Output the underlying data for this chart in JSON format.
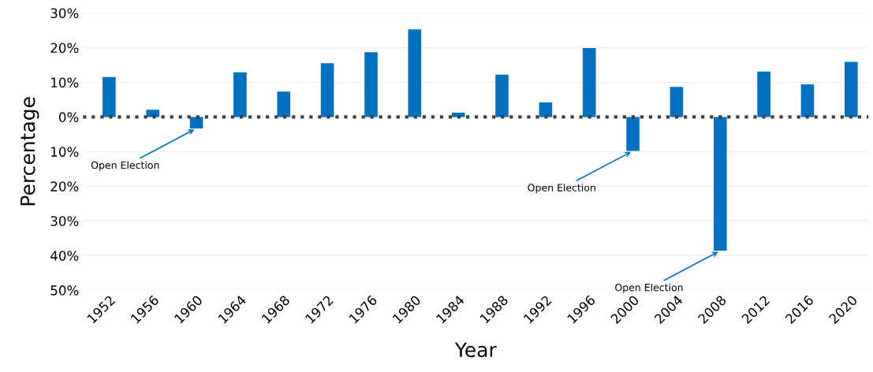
{
  "chart_data": {
    "type": "bar",
    "xlabel": "Year",
    "ylabel": "Percentage",
    "categories": [
      "1952",
      "1956",
      "1960",
      "1964",
      "1968",
      "1972",
      "1976",
      "1980",
      "1984",
      "1988",
      "1992",
      "1996",
      "2000",
      "2004",
      "2008",
      "2012",
      "2016",
      "2020"
    ],
    "values": [
      11.5,
      2.1,
      -3.3,
      12.9,
      7.3,
      15.5,
      18.7,
      25.3,
      1.2,
      12.2,
      4.2,
      19.9,
      -9.8,
      8.7,
      -38.6,
      13.1,
      9.4,
      15.9
    ],
    "color": "#0070c0",
    "ylim": [
      -50,
      30
    ],
    "yticks": [
      {
        "value": -50,
        "label": "50%"
      },
      {
        "value": -40,
        "label": "40%"
      },
      {
        "value": -30,
        "label": "30%"
      },
      {
        "value": -20,
        "label": "20%"
      },
      {
        "value": -10,
        "label": "10%"
      },
      {
        "value": 0,
        "label": "0%"
      },
      {
        "value": 10,
        "label": "10%"
      },
      {
        "value": 20,
        "label": "20%"
      },
      {
        "value": 30,
        "label": "30%"
      }
    ],
    "grid": "y",
    "ref_lines": [
      {
        "axis": "y",
        "value": 0,
        "color": "#404040",
        "line_style": "dotted"
      }
    ],
    "annotations": [
      {
        "text": "Open Election",
        "x": "1960",
        "y": -3.3
      },
      {
        "text": "Open Election",
        "x": "2000",
        "y": -9.8
      },
      {
        "text": "Open Election",
        "x": "2008",
        "y": -38.6
      }
    ]
  }
}
